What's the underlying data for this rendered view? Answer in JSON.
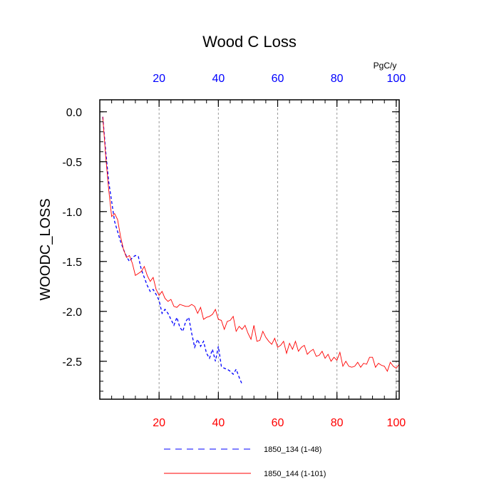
{
  "chart_data": {
    "type": "line",
    "title": "Wood C Loss",
    "ylabel": "WOODC_LOSS",
    "top_axis_unit": "PgC/y",
    "xlim": [
      0,
      101
    ],
    "ylim": [
      -2.88,
      0.12
    ],
    "x_ticks": [
      20,
      40,
      60,
      80,
      100
    ],
    "y_ticks": [
      0.0,
      -0.5,
      -1.0,
      -1.5,
      -2.0,
      -2.5
    ],
    "y_tick_labels": [
      "0.0",
      "-0.5",
      "-1.0",
      "-1.5",
      "-2.0",
      "-2.5"
    ],
    "x_tick_labels": [
      "20",
      "40",
      "60",
      "80",
      "100"
    ],
    "grid_x": true,
    "colors": {
      "bottom_ticks": "#ff0000",
      "top_ticks": "#0000ff"
    },
    "series": [
      {
        "name": "1850_134 (1-48)",
        "color": "#0000ff",
        "dash": "dashed",
        "x": [
          1,
          2,
          3,
          4,
          5,
          6,
          7,
          8,
          9,
          10,
          11,
          12,
          13,
          14,
          15,
          16,
          17,
          18,
          19,
          20,
          21,
          22,
          23,
          24,
          25,
          26,
          27,
          28,
          29,
          30,
          31,
          32,
          33,
          34,
          35,
          36,
          37,
          38,
          39,
          40,
          41,
          42,
          43,
          44,
          45,
          46,
          47,
          48
        ],
        "values": [
          -0.05,
          -0.4,
          -0.7,
          -0.9,
          -1.1,
          -1.2,
          -1.3,
          -1.38,
          -1.45,
          -1.5,
          -1.46,
          -1.44,
          -1.45,
          -1.58,
          -1.66,
          -1.74,
          -1.8,
          -1.78,
          -1.83,
          -1.89,
          -2.02,
          -1.98,
          -2.02,
          -2.08,
          -2.14,
          -2.06,
          -2.16,
          -2.2,
          -2.1,
          -2.06,
          -2.22,
          -2.36,
          -2.28,
          -2.35,
          -2.3,
          -2.42,
          -2.47,
          -2.38,
          -2.5,
          -2.35,
          -2.55,
          -2.57,
          -2.58,
          -2.6,
          -2.63,
          -2.58,
          -2.66,
          -2.73
        ]
      },
      {
        "name": "1850_144 (1-101)",
        "color": "#ff0000",
        "dash": "solid",
        "x": [
          1,
          2,
          3,
          4,
          5,
          6,
          7,
          8,
          9,
          10,
          11,
          12,
          13,
          14,
          15,
          16,
          17,
          18,
          19,
          20,
          21,
          22,
          23,
          24,
          25,
          26,
          27,
          28,
          29,
          30,
          31,
          32,
          33,
          34,
          35,
          36,
          37,
          38,
          39,
          40,
          41,
          42,
          43,
          44,
          45,
          46,
          47,
          48,
          49,
          50,
          51,
          52,
          53,
          54,
          55,
          56,
          57,
          58,
          59,
          60,
          61,
          62,
          63,
          64,
          65,
          66,
          67,
          68,
          69,
          70,
          71,
          72,
          73,
          74,
          75,
          76,
          77,
          78,
          79,
          80,
          81,
          82,
          83,
          84,
          85,
          86,
          87,
          88,
          89,
          90,
          91,
          92,
          93,
          94,
          95,
          96,
          97,
          98,
          99,
          100,
          101
        ],
        "values": [
          -0.05,
          -0.45,
          -0.78,
          -1.05,
          -1.02,
          -1.08,
          -1.25,
          -1.38,
          -1.46,
          -1.44,
          -1.52,
          -1.64,
          -1.62,
          -1.6,
          -1.55,
          -1.64,
          -1.7,
          -1.66,
          -1.78,
          -1.84,
          -1.8,
          -1.87,
          -1.9,
          -1.88,
          -1.95,
          -1.96,
          -1.93,
          -1.94,
          -1.95,
          -1.95,
          -1.93,
          -1.95,
          -2.02,
          -1.96,
          -2.08,
          -2.06,
          -2.05,
          -2.03,
          -1.98,
          -2.08,
          -2.09,
          -2.18,
          -2.1,
          -2.09,
          -2.05,
          -2.2,
          -2.15,
          -2.18,
          -2.14,
          -2.22,
          -2.28,
          -2.14,
          -2.3,
          -2.29,
          -2.2,
          -2.26,
          -2.3,
          -2.33,
          -2.27,
          -2.36,
          -2.34,
          -2.3,
          -2.42,
          -2.32,
          -2.38,
          -2.3,
          -2.4,
          -2.36,
          -2.34,
          -2.43,
          -2.4,
          -2.38,
          -2.45,
          -2.44,
          -2.4,
          -2.47,
          -2.43,
          -2.5,
          -2.46,
          -2.49,
          -2.41,
          -2.55,
          -2.5,
          -2.55,
          -2.56,
          -2.55,
          -2.51,
          -2.56,
          -2.52,
          -2.53,
          -2.46,
          -2.46,
          -2.56,
          -2.52,
          -2.54,
          -2.55,
          -2.6,
          -2.51,
          -2.55,
          -2.57,
          -2.53
        ]
      }
    ]
  }
}
